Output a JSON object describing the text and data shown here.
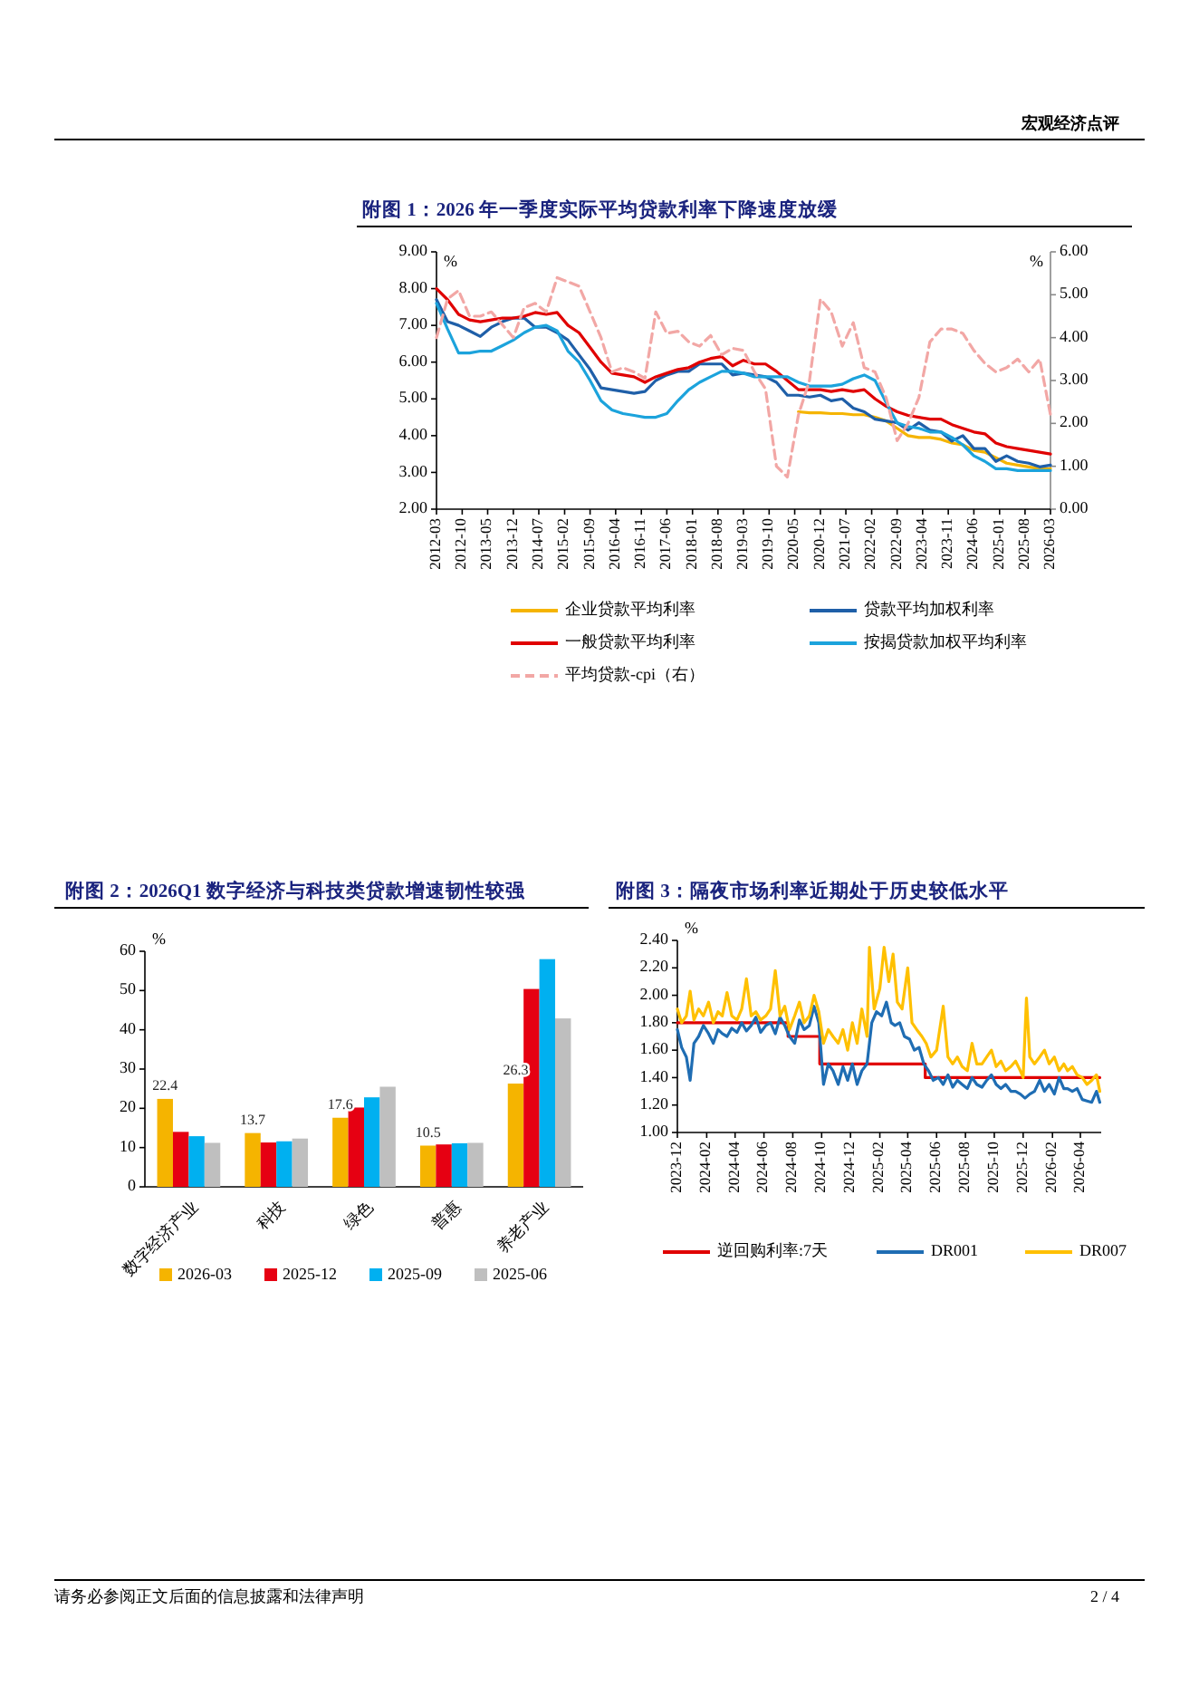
{
  "chart_data": [
    {
      "type": "line",
      "title": "附图 1：2026 年一季度实际平均贷款利率下降速度放缓",
      "ylabel": "%",
      "y2label": "%",
      "annotations": [
        "宏观经济点评"
      ],
      "x": [
        "2012-03",
        "2012-06",
        "2012-09",
        "2012-12",
        "2013-03",
        "2013-06",
        "2013-09",
        "2013-12",
        "2014-03",
        "2014-06",
        "2014-09",
        "2014-12",
        "2015-03",
        "2015-06",
        "2015-09",
        "2015-12",
        "2016-03",
        "2016-06",
        "2016-09",
        "2016-12",
        "2017-03",
        "2017-06",
        "2017-09",
        "2017-12",
        "2018-03",
        "2018-06",
        "2018-09",
        "2018-12",
        "2019-03",
        "2019-06",
        "2019-09",
        "2019-12",
        "2020-03",
        "2020-06",
        "2020-09",
        "2020-12",
        "2021-03",
        "2021-06",
        "2021-09",
        "2021-12",
        "2022-03",
        "2022-06",
        "2022-09",
        "2022-12",
        "2023-03",
        "2023-06",
        "2023-09",
        "2023-12",
        "2024-03",
        "2024-06",
        "2024-09",
        "2024-12",
        "2025-03",
        "2025-06",
        "2025-09",
        "2025-12",
        "2026-03"
      ],
      "xlim": [
        "2012-03",
        "2026-03"
      ],
      "xticks": [
        "2012-03",
        "2012-10",
        "2013-05",
        "2013-12",
        "2014-07",
        "2015-02",
        "2015-09",
        "2016-04",
        "2016-11",
        "2017-06",
        "2018-01",
        "2018-08",
        "2019-03",
        "2019-10",
        "2020-05",
        "2020-12",
        "2021-07",
        "2022-02",
        "2022-09",
        "2023-04",
        "2023-11",
        "2024-06",
        "2025-01",
        "2025-08",
        "2026-03"
      ],
      "ylim": [
        2,
        9
      ],
      "yticks": [
        {
          "value": 2,
          "label": "2.00"
        },
        {
          "value": 3,
          "label": "3.00"
        },
        {
          "value": 4,
          "label": "4.00"
        },
        {
          "value": 5,
          "label": "5.00"
        },
        {
          "value": 6,
          "label": "6.00"
        },
        {
          "value": 7,
          "label": "7.00"
        },
        {
          "value": 8,
          "label": "8.00"
        },
        {
          "value": 9,
          "label": "9.00"
        }
      ],
      "y2lim": [
        0,
        6
      ],
      "y2ticks": [
        {
          "value": 0,
          "label": "0.00"
        },
        {
          "value": 1,
          "label": "1.00"
        },
        {
          "value": 2,
          "label": "2.00"
        },
        {
          "value": 3,
          "label": "3.00"
        },
        {
          "value": 4,
          "label": "4.00"
        },
        {
          "value": 5,
          "label": "5.00"
        },
        {
          "value": 6,
          "label": "6.00"
        }
      ],
      "legend": "bottom",
      "series": [
        {
          "name": "企业贷款平均利率",
          "color": "#f5b400",
          "values": [
            null,
            null,
            null,
            null,
            null,
            null,
            null,
            null,
            null,
            null,
            null,
            null,
            null,
            null,
            null,
            null,
            null,
            null,
            null,
            null,
            null,
            null,
            null,
            null,
            null,
            null,
            null,
            null,
            null,
            null,
            null,
            null,
            null,
            4.65,
            4.62,
            4.62,
            4.6,
            4.6,
            4.57,
            4.57,
            4.5,
            4.4,
            4.2,
            4.0,
            3.95,
            3.95,
            3.9,
            3.8,
            3.75,
            3.6,
            3.55,
            3.4,
            3.25,
            3.2,
            3.15,
            3.1,
            3.1
          ]
        },
        {
          "name": "贷款平均加权利率",
          "color": "#1f5fa8",
          "values": [
            7.7,
            7.1,
            7.0,
            6.85,
            6.7,
            6.95,
            7.1,
            7.2,
            7.2,
            6.95,
            6.95,
            6.8,
            6.6,
            6.2,
            5.8,
            5.3,
            5.25,
            5.2,
            5.15,
            5.2,
            5.5,
            5.65,
            5.75,
            5.75,
            5.95,
            5.95,
            5.95,
            5.65,
            5.7,
            5.65,
            5.6,
            5.45,
            5.1,
            5.1,
            5.05,
            5.1,
            4.95,
            5.0,
            4.75,
            4.65,
            4.45,
            4.4,
            4.35,
            4.15,
            4.35,
            4.15,
            4.1,
            3.85,
            4.0,
            3.65,
            3.65,
            3.3,
            3.45,
            3.3,
            3.25,
            3.15,
            3.2
          ]
        },
        {
          "name": "一般贷款平均利率",
          "color": "#e00000",
          "values": [
            8.0,
            7.7,
            7.3,
            7.15,
            7.1,
            7.15,
            7.2,
            7.2,
            7.25,
            7.35,
            7.3,
            7.35,
            7.0,
            6.8,
            6.4,
            6.0,
            5.7,
            5.65,
            5.6,
            5.45,
            5.6,
            5.7,
            5.8,
            5.85,
            6.0,
            6.1,
            6.15,
            5.9,
            6.05,
            5.95,
            5.95,
            5.75,
            5.5,
            5.25,
            5.25,
            5.25,
            5.2,
            5.25,
            5.2,
            5.25,
            5.0,
            4.8,
            4.65,
            4.55,
            4.5,
            4.45,
            4.45,
            4.3,
            4.2,
            4.1,
            4.05,
            3.8,
            3.7,
            3.65,
            3.6,
            3.55,
            3.5
          ]
        },
        {
          "name": "按揭贷款加权平均利率",
          "color": "#1ca3dc",
          "values": [
            7.6,
            6.9,
            6.25,
            6.25,
            6.3,
            6.3,
            6.45,
            6.6,
            6.8,
            6.95,
            7.0,
            6.85,
            6.3,
            6.0,
            5.5,
            4.95,
            4.7,
            4.6,
            4.55,
            4.5,
            4.5,
            4.6,
            4.95,
            5.25,
            5.45,
            5.6,
            5.75,
            5.75,
            5.7,
            5.6,
            5.6,
            5.6,
            5.6,
            5.45,
            5.35,
            5.35,
            5.35,
            5.4,
            5.55,
            5.65,
            5.5,
            4.9,
            4.35,
            4.25,
            4.2,
            4.1,
            4.1,
            3.95,
            3.75,
            3.45,
            3.3,
            3.1,
            3.1,
            3.05,
            3.05,
            3.05,
            3.05
          ]
        },
        {
          "name": "平均贷款-cpi（右）",
          "color": "#f2a7a5",
          "axis": "y2",
          "line_style": "dashed",
          "values": [
            4.0,
            4.9,
            5.1,
            4.5,
            4.5,
            4.6,
            4.3,
            4.0,
            4.7,
            4.8,
            4.6,
            5.4,
            5.3,
            5.2,
            4.6,
            4.0,
            3.2,
            3.3,
            3.2,
            3.05,
            4.6,
            4.1,
            4.15,
            3.9,
            3.8,
            4.05,
            3.6,
            3.75,
            3.7,
            3.2,
            2.8,
            1.0,
            0.75,
            2.2,
            3.0,
            4.9,
            4.6,
            3.8,
            4.35,
            3.3,
            3.2,
            2.6,
            1.6,
            2.0,
            2.6,
            3.9,
            4.2,
            4.2,
            4.1,
            3.7,
            3.4,
            3.2,
            3.3,
            3.5,
            3.2,
            3.5,
            2.2
          ]
        }
      ]
    },
    {
      "type": "bar",
      "title": "附图 2：2026Q1 数字经济与科技类贷款增速韧性较强",
      "ylabel": "%",
      "categories": [
        "数字经济产业",
        "科技",
        "绿色",
        "普惠",
        "养老产业"
      ],
      "ylim": [
        0,
        60
      ],
      "yticks": [
        0,
        10,
        20,
        30,
        40,
        50,
        60
      ],
      "legend": "bottom",
      "series": [
        {
          "name": "2026-03",
          "color": "#f5b400",
          "values": [
            22.4,
            13.7,
            17.6,
            10.5,
            26.3
          ],
          "value_labels": [
            "22.4",
            "13.7",
            "17.6",
            "10.5",
            "26.3"
          ]
        },
        {
          "name": "2025-12",
          "color": "#e60012",
          "values": [
            14.0,
            11.3,
            20.2,
            10.8,
            50.4
          ]
        },
        {
          "name": "2025-09",
          "color": "#00b0f0",
          "values": [
            12.9,
            11.6,
            22.8,
            11.1,
            58.0
          ]
        },
        {
          "name": "2025-06",
          "color": "#bfbfbf",
          "values": [
            11.2,
            12.3,
            25.5,
            11.2,
            42.9
          ]
        }
      ]
    },
    {
      "type": "line",
      "title": "附图 3：隔夜市场利率近期处于历史较低水平",
      "ylabel": "%",
      "annotations": [
        "请务必参阅正文后面的信息披露和法律声明",
        "2 / 4"
      ],
      "xlim": [
        "2023-12-01",
        "2026-05-15"
      ],
      "xticks": [
        "2023-12",
        "2024-02",
        "2024-04",
        "2024-06",
        "2024-08",
        "2024-10",
        "2024-12",
        "2025-02",
        "2025-04",
        "2025-06",
        "2025-08",
        "2025-10",
        "2025-12",
        "2026-02",
        "2026-04"
      ],
      "ylim": [
        1,
        2.4
      ],
      "yticks": [
        {
          "value": 1,
          "label": "1.00"
        },
        {
          "value": 1.2,
          "label": "1.20"
        },
        {
          "value": 1.4,
          "label": "1.40"
        },
        {
          "value": 1.6,
          "label": "1.60"
        },
        {
          "value": 1.8,
          "label": "1.80"
        },
        {
          "value": 2,
          "label": "2.00"
        },
        {
          "value": 2.2,
          "label": "2.20"
        },
        {
          "value": 2.4,
          "label": "2.40"
        }
      ],
      "legend": "bottom",
      "series": [
        {
          "name": "逆回购利率:7天",
          "color": "#e00000",
          "type": "step",
          "x": [
            "2023-12-01",
            "2024-07-22",
            "2024-09-27",
            "2025-05-08",
            "2026-05-12"
          ],
          "values": [
            1.8,
            1.7,
            1.5,
            1.4,
            1.4
          ]
        },
        {
          "name": "DR001",
          "color": "#1f6db3",
          "x": [
            "2023-12-01",
            "2023-12-10",
            "2023-12-20",
            "2023-12-28",
            "2024-01-05",
            "2024-01-15",
            "2024-01-25",
            "2024-02-05",
            "2024-02-15",
            "2024-02-25",
            "2024-03-05",
            "2024-03-15",
            "2024-03-25",
            "2024-04-05",
            "2024-04-15",
            "2024-04-25",
            "2024-05-05",
            "2024-05-15",
            "2024-05-25",
            "2024-06-05",
            "2024-06-15",
            "2024-06-25",
            "2024-07-05",
            "2024-07-15",
            "2024-07-25",
            "2024-08-05",
            "2024-08-15",
            "2024-08-25",
            "2024-09-05",
            "2024-09-15",
            "2024-09-25",
            "2024-10-05",
            "2024-10-15",
            "2024-10-25",
            "2024-11-05",
            "2024-11-15",
            "2024-11-25",
            "2024-12-05",
            "2024-12-15",
            "2024-12-25",
            "2025-01-05",
            "2025-01-15",
            "2025-01-25",
            "2025-02-05",
            "2025-02-15",
            "2025-02-25",
            "2025-03-05",
            "2025-03-15",
            "2025-03-25",
            "2025-04-05",
            "2025-04-15",
            "2025-04-25",
            "2025-05-05",
            "2025-05-15",
            "2025-05-25",
            "2025-06-05",
            "2025-06-15",
            "2025-06-25",
            "2025-07-05",
            "2025-07-15",
            "2025-07-25",
            "2025-08-05",
            "2025-08-15",
            "2025-08-25",
            "2025-09-05",
            "2025-09-15",
            "2025-09-25",
            "2025-10-05",
            "2025-10-15",
            "2025-10-25",
            "2025-11-05",
            "2025-11-15",
            "2025-11-25",
            "2025-12-05",
            "2025-12-15",
            "2025-12-25",
            "2026-01-05",
            "2026-01-15",
            "2026-01-25",
            "2026-02-05",
            "2026-02-15",
            "2026-02-25",
            "2026-03-05",
            "2026-03-15",
            "2026-03-25",
            "2026-04-05",
            "2026-04-15",
            "2026-04-25",
            "2026-05-05",
            "2026-05-12"
          ],
          "values": [
            1.75,
            1.62,
            1.55,
            1.38,
            1.65,
            1.7,
            1.78,
            1.72,
            1.65,
            1.75,
            1.72,
            1.7,
            1.76,
            1.73,
            1.8,
            1.74,
            1.78,
            1.84,
            1.73,
            1.78,
            1.8,
            1.72,
            1.84,
            1.78,
            1.7,
            1.65,
            1.82,
            1.75,
            1.78,
            1.92,
            1.8,
            1.35,
            1.5,
            1.45,
            1.35,
            1.48,
            1.38,
            1.5,
            1.35,
            1.45,
            1.5,
            1.8,
            1.88,
            1.85,
            1.95,
            1.8,
            1.78,
            1.8,
            1.7,
            1.68,
            1.6,
            1.62,
            1.5,
            1.45,
            1.38,
            1.4,
            1.35,
            1.42,
            1.33,
            1.38,
            1.35,
            1.32,
            1.4,
            1.35,
            1.33,
            1.38,
            1.42,
            1.35,
            1.32,
            1.35,
            1.3,
            1.3,
            1.28,
            1.25,
            1.28,
            1.3,
            1.38,
            1.3,
            1.35,
            1.28,
            1.4,
            1.32,
            1.32,
            1.3,
            1.32,
            1.24,
            1.23,
            1.22,
            1.3,
            1.22
          ]
        },
        {
          "name": "DR007",
          "color": "#ffc000",
          "x": [
            "2023-12-01",
            "2023-12-10",
            "2023-12-20",
            "2023-12-28",
            "2024-01-05",
            "2024-01-15",
            "2024-01-25",
            "2024-02-05",
            "2024-02-15",
            "2024-02-25",
            "2024-03-05",
            "2024-03-15",
            "2024-03-25",
            "2024-04-05",
            "2024-04-15",
            "2024-04-25",
            "2024-05-05",
            "2024-05-15",
            "2024-05-25",
            "2024-06-05",
            "2024-06-15",
            "2024-06-25",
            "2024-07-05",
            "2024-07-15",
            "2024-07-25",
            "2024-08-05",
            "2024-08-15",
            "2024-08-25",
            "2024-09-05",
            "2024-09-15",
            "2024-09-25",
            "2024-10-05",
            "2024-10-15",
            "2024-10-25",
            "2024-11-05",
            "2024-11-15",
            "2024-11-25",
            "2024-12-05",
            "2024-12-15",
            "2024-12-25",
            "2025-01-05",
            "2025-01-10",
            "2025-01-20",
            "2025-02-01",
            "2025-02-10",
            "2025-02-20",
            "2025-03-01",
            "2025-03-10",
            "2025-03-20",
            "2025-04-01",
            "2025-04-10",
            "2025-04-20",
            "2025-05-01",
            "2025-05-10",
            "2025-05-20",
            "2025-06-01",
            "2025-06-15",
            "2025-06-25",
            "2025-07-05",
            "2025-07-15",
            "2025-07-25",
            "2025-08-05",
            "2025-08-15",
            "2025-08-25",
            "2025-09-05",
            "2025-09-15",
            "2025-09-25",
            "2025-10-05",
            "2025-10-15",
            "2025-10-25",
            "2025-11-05",
            "2025-11-15",
            "2025-11-25",
            "2025-12-01",
            "2025-12-08",
            "2025-12-15",
            "2025-12-25",
            "2026-01-05",
            "2026-01-15",
            "2026-01-25",
            "2026-02-05",
            "2026-02-15",
            "2026-02-25",
            "2026-03-05",
            "2026-03-15",
            "2026-03-25",
            "2026-04-05",
            "2026-04-15",
            "2026-04-25",
            "2026-05-05",
            "2026-05-12"
          ],
          "values": [
            1.9,
            1.8,
            1.85,
            2.03,
            1.82,
            1.9,
            1.85,
            1.95,
            1.8,
            1.88,
            1.85,
            2.02,
            1.85,
            1.82,
            1.9,
            2.12,
            1.85,
            1.88,
            1.82,
            1.85,
            1.9,
            2.18,
            1.85,
            1.92,
            1.75,
            1.85,
            1.95,
            1.8,
            1.85,
            2.0,
            1.88,
            1.65,
            1.75,
            1.7,
            1.65,
            1.75,
            1.6,
            1.8,
            1.65,
            1.9,
            1.7,
            2.35,
            1.9,
            2.05,
            2.35,
            2.1,
            2.3,
            1.95,
            1.9,
            2.2,
            1.8,
            1.75,
            1.7,
            1.65,
            1.55,
            1.6,
            1.92,
            1.55,
            1.5,
            1.55,
            1.48,
            1.45,
            1.65,
            1.5,
            1.5,
            1.55,
            1.6,
            1.48,
            1.52,
            1.45,
            1.48,
            1.52,
            1.45,
            1.4,
            1.98,
            1.55,
            1.5,
            1.55,
            1.6,
            1.5,
            1.55,
            1.45,
            1.5,
            1.45,
            1.48,
            1.42,
            1.4,
            1.35,
            1.38,
            1.42,
            1.3
          ]
        }
      ]
    }
  ]
}
